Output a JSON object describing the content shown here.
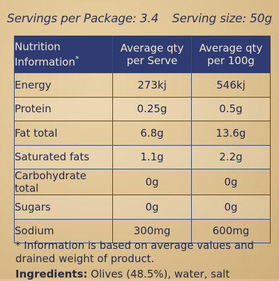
{
  "servings": {
    "per_package": "Servings per Package: 3.4",
    "serving_size": "Serving size: 50g"
  },
  "table": {
    "headers": {
      "label_line1": "Nutrition",
      "label_line2": "Information",
      "label_mark": "*",
      "per_serve_line1": "Average qty",
      "per_serve_line2": "per Serve",
      "per_100g_line1": "Average qty",
      "per_100g_line2": "per 100g"
    },
    "rows": [
      {
        "label": "Energy",
        "per_serve": "273kj",
        "per_100g": "546kj"
      },
      {
        "label": "Protein",
        "per_serve": "0.25g",
        "per_100g": "0.5g"
      },
      {
        "label": "Fat total",
        "per_serve": "6.8g",
        "per_100g": "13.6g"
      },
      {
        "label": "Saturated fats",
        "per_serve": "1.1g",
        "per_100g": "2.2g"
      },
      {
        "label": "Carbohydrate total",
        "per_serve": "0g",
        "per_100g": "0g"
      },
      {
        "label": "Sugars",
        "per_serve": "0g",
        "per_100g": "0g"
      },
      {
        "label": "Sodium",
        "per_serve": "300mg",
        "per_100g": "600mg"
      }
    ]
  },
  "footnote": "* Information is based on average values and drained weight of product.",
  "ingredients": {
    "label": "Ingredients:",
    "text": " Olives (48.5%), water, salt"
  }
}
